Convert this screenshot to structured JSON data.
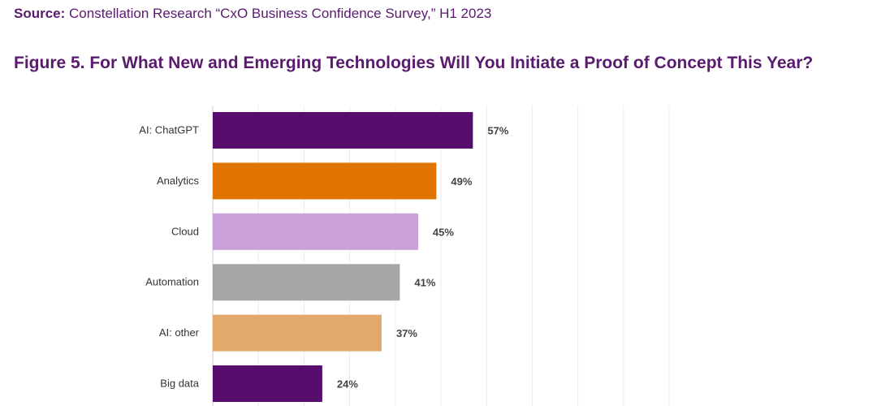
{
  "source": {
    "label": "Source:",
    "text": "Constellation Research “CxO Business Confidence Survey,” H1 2023"
  },
  "chart_data": {
    "type": "bar",
    "orientation": "horizontal",
    "title": "Figure 5. For What New and Emerging Technologies Will You Initiate a Proof of Concept This Year?",
    "categories": [
      "AI: ChatGPT",
      "Analytics",
      "Cloud",
      "Automation",
      "AI: other",
      "Big data"
    ],
    "values": [
      57,
      49,
      45,
      41,
      37,
      24
    ],
    "data_labels": [
      "57%",
      "49%",
      "45%",
      "41%",
      "37%",
      "24%"
    ],
    "colors": [
      "#570d6d",
      "#e07400",
      "#c9a0da",
      "#a6a6a6",
      "#e3a96c",
      "#570d6d"
    ],
    "xlim": [
      0,
      100
    ],
    "grid": true,
    "unit": "%"
  }
}
